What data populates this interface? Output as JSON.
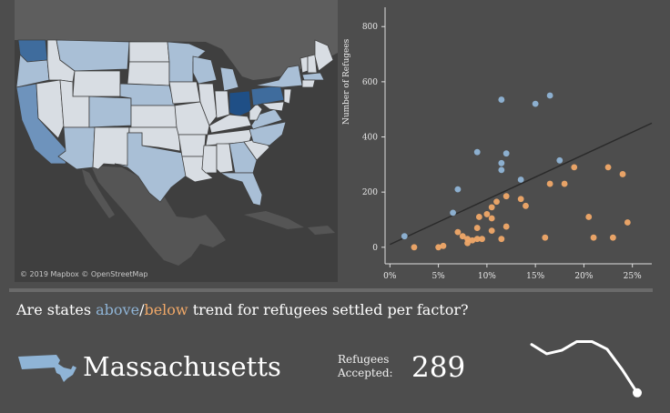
{
  "map": {
    "attribution": "© 2019 Mapbox © OpenStreetMap",
    "colors": {
      "water": "#3f3f3f",
      "land": "#5a5a5a",
      "state_light": "#d8dde3",
      "state_mid": "#a9bfd6",
      "state_dark": "#3f6c9d",
      "state_darkest": "#1f4f86"
    }
  },
  "question": {
    "prefix": "Are states ",
    "above": "above",
    "slash": "/",
    "below": "below",
    "suffix": " trend for refugees settled per factor?"
  },
  "selection": {
    "state": "Massachusetts",
    "refugees_label_1": "Refugees",
    "refugees_label_2": "Accepted:",
    "refugees_value": "289"
  },
  "colors": {
    "above": "#8fb4d6",
    "below": "#f0a868",
    "trend": "#2a2a2a"
  },
  "chart_data": {
    "type": "scatter",
    "ylabel": "Number of Refugees",
    "xlabel": "",
    "xlim": [
      -0.5,
      27
    ],
    "ylim": [
      -60,
      870
    ],
    "x_ticks": [
      "0%",
      "5%",
      "10%",
      "15%",
      "20%",
      "25%"
    ],
    "x_tick_values": [
      0,
      5,
      10,
      15,
      20,
      25
    ],
    "y_ticks": [
      "0",
      "200",
      "400",
      "600",
      "800"
    ],
    "y_tick_values": [
      0,
      200,
      400,
      600,
      800
    ],
    "trend_line": [
      [
        0,
        10
      ],
      [
        27,
        450
      ]
    ],
    "series": [
      {
        "name": "above",
        "color": "#8fb4d6",
        "points": [
          [
            1.5,
            40
          ],
          [
            6.5,
            125
          ],
          [
            7,
            210
          ],
          [
            9,
            345
          ],
          [
            11.5,
            535
          ],
          [
            11.5,
            305
          ],
          [
            11.5,
            280
          ],
          [
            12,
            340
          ],
          [
            13.5,
            245
          ],
          [
            15,
            520
          ],
          [
            16.5,
            550
          ],
          [
            17.5,
            315
          ]
        ]
      },
      {
        "name": "below",
        "color": "#f0a868",
        "points": [
          [
            2.5,
            0
          ],
          [
            5,
            0
          ],
          [
            5.5,
            5
          ],
          [
            7,
            55
          ],
          [
            7.5,
            40
          ],
          [
            8,
            15
          ],
          [
            8,
            30
          ],
          [
            8.5,
            25
          ],
          [
            9,
            30
          ],
          [
            9,
            70
          ],
          [
            9.2,
            110
          ],
          [
            9.5,
            30
          ],
          [
            10,
            120
          ],
          [
            10.5,
            105
          ],
          [
            10.5,
            145
          ],
          [
            10.5,
            60
          ],
          [
            11,
            165
          ],
          [
            11.5,
            30
          ],
          [
            12,
            75
          ],
          [
            12,
            185
          ],
          [
            13.5,
            175
          ],
          [
            14,
            150
          ],
          [
            16,
            35
          ],
          [
            16.5,
            230
          ],
          [
            18,
            230
          ],
          [
            19,
            290
          ],
          [
            20.5,
            110
          ],
          [
            21,
            35
          ],
          [
            22.5,
            290
          ],
          [
            23,
            35
          ],
          [
            24,
            265
          ],
          [
            24.5,
            90
          ]
        ]
      }
    ]
  },
  "sparkline": {
    "values": [
      0.88,
      0.72,
      0.78,
      0.93,
      0.93,
      0.8,
      0.45,
      0.05
    ]
  }
}
